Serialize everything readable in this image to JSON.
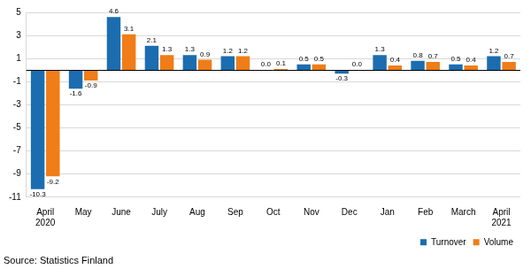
{
  "chart_data": {
    "type": "bar",
    "caption": "Source: Statistics Finland",
    "categories": [
      "April 2020",
      "May",
      "June",
      "July",
      "Aug",
      "Sep",
      "Oct",
      "Nov",
      "Dec",
      "Jan",
      "Feb",
      "March",
      "April 2021"
    ],
    "series": [
      {
        "name": "Turnover",
        "color": "#1b6daf",
        "values": [
          -10.3,
          -1.6,
          4.6,
          2.1,
          1.3,
          1.2,
          0.0,
          0.5,
          -0.3,
          1.3,
          0.8,
          0.5,
          1.2
        ],
        "value_labels": [
          "-10.3",
          "-1.6",
          "4.6",
          "2.1",
          "1.3",
          "1.2",
          "0.0",
          "0.5",
          "-0.3",
          "1.3",
          "0.8",
          "0.5",
          "1.2"
        ]
      },
      {
        "name": "Volume",
        "color": "#f07d17",
        "values": [
          -9.2,
          -0.9,
          3.1,
          1.3,
          0.9,
          1.2,
          0.1,
          0.5,
          0.0,
          0.4,
          0.7,
          0.4,
          0.7
        ],
        "value_labels": [
          "-9.2",
          "-0.9",
          "3.1",
          "1.3",
          "0.9",
          "1.2",
          "0.1",
          "0.5",
          "0.0",
          "0.4",
          "0.7",
          "0.4",
          "0.7"
        ]
      }
    ],
    "ylim": [
      -11,
      5
    ],
    "yticks": [
      -11,
      -9,
      -7,
      -5,
      -3,
      -1,
      1,
      3,
      5
    ],
    "grid": true,
    "legend": "bottom right",
    "data_labels": true
  }
}
